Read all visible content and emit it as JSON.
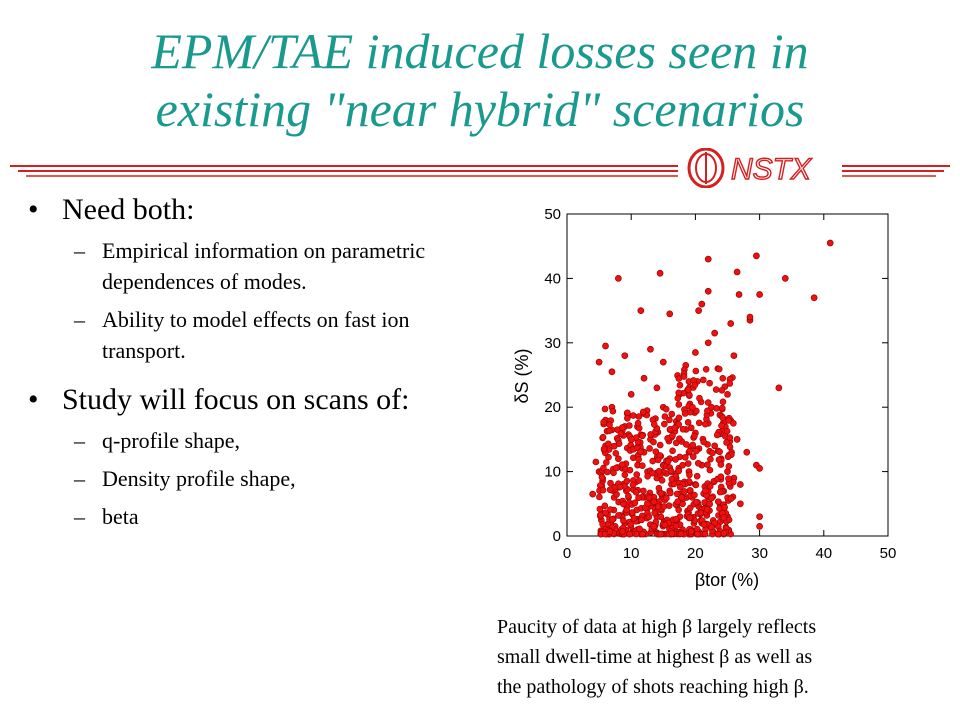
{
  "slide": {
    "title_line1": "EPM/TAE induced losses seen in",
    "title_line2": "existing \"near hybrid\" scenarios",
    "logo_text": "NSTX",
    "bullet_glyph": "•",
    "dash_glyph": "–",
    "bullets": [
      {
        "text": "Need both:",
        "sub": [
          "Empirical information on parametric dependences of modes.",
          "Ability to model effects on fast ion transport."
        ]
      },
      {
        "text": "Study will focus on scans of:",
        "sub": [
          "q-profile shape,",
          "Density profile shape,",
          "beta"
        ]
      }
    ],
    "caption_lines": [
      "Paucity of data at high β largely reflects",
      "small dwell-time at highest β as well as",
      "the pathology of shots reaching high β."
    ]
  },
  "colors": {
    "title": "#1a9a8e",
    "logo_red": "#d42020",
    "points": "#ee1111",
    "point_edge": "#990000"
  },
  "chart_data": {
    "type": "scatter",
    "xlabel": "βtor (%)",
    "ylabel": "δS (%)",
    "xlim": [
      0,
      50
    ],
    "ylim": [
      0,
      50
    ],
    "xticks": [
      0,
      10,
      20,
      30,
      40,
      50
    ],
    "yticks": [
      0,
      10,
      20,
      30,
      40,
      50
    ],
    "grid": false,
    "series": [
      {
        "points": [
          [
            41,
            45.5
          ],
          [
            29.5,
            43.5
          ],
          [
            22,
            43
          ],
          [
            14.5,
            40.8
          ],
          [
            8,
            40
          ],
          [
            30,
            37.5
          ],
          [
            34,
            40
          ],
          [
            38.5,
            37
          ],
          [
            26.5,
            41
          ],
          [
            22,
            38
          ],
          [
            26.8,
            37.5
          ],
          [
            21,
            36
          ],
          [
            20.5,
            35
          ],
          [
            11.5,
            35
          ],
          [
            28.5,
            33.5
          ],
          [
            28.5,
            34
          ],
          [
            25.5,
            33
          ],
          [
            16,
            34.5
          ],
          [
            33,
            23
          ],
          [
            26,
            28
          ],
          [
            23,
            31.5
          ],
          [
            22,
            30
          ],
          [
            20,
            28.5
          ],
          [
            18.5,
            26.5
          ],
          [
            15,
            27
          ],
          [
            13,
            29
          ],
          [
            9,
            28
          ],
          [
            6,
            29.5
          ],
          [
            5,
            27
          ],
          [
            7,
            25.5
          ],
          [
            12,
            24.5
          ],
          [
            19,
            24
          ],
          [
            23.5,
            26
          ],
          [
            17.5,
            22
          ],
          [
            14,
            23
          ],
          [
            10,
            22
          ],
          [
            25,
            22
          ],
          [
            7,
            20
          ],
          [
            6,
            18
          ],
          [
            9,
            17
          ],
          [
            12,
            19
          ],
          [
            15,
            20
          ],
          [
            22.5,
            20
          ],
          [
            26.5,
            15
          ],
          [
            24,
            12
          ],
          [
            28,
            13
          ],
          [
            29.5,
            11
          ],
          [
            30,
            10.5
          ],
          [
            30,
            3
          ],
          [
            30,
            1.5
          ],
          [
            27,
            5
          ],
          [
            25,
            3
          ],
          [
            5.5,
            3.5
          ],
          [
            4,
            6.5
          ],
          [
            5,
            10
          ],
          [
            4.5,
            11.5
          ],
          [
            9,
            2
          ],
          [
            7.5,
            1.5
          ],
          [
            21,
            2
          ],
          [
            18,
            1
          ],
          [
            14,
            0.5
          ],
          [
            11,
            1
          ],
          [
            16,
            12
          ],
          [
            13,
            15
          ],
          [
            11,
            11
          ],
          [
            8,
            8
          ],
          [
            10,
            5
          ],
          [
            12,
            6
          ],
          [
            14,
            3
          ],
          [
            16,
            7
          ],
          [
            18,
            5
          ],
          [
            20,
            8
          ],
          [
            22,
            6
          ],
          [
            24,
            7
          ],
          [
            26,
            9
          ],
          [
            19,
            13
          ],
          [
            21,
            11
          ],
          [
            23,
            14
          ],
          [
            17,
            17
          ],
          [
            20,
            16
          ],
          [
            22,
            17.5
          ],
          [
            6,
            14
          ],
          [
            8,
            12
          ],
          [
            10,
            15
          ],
          [
            12,
            13
          ],
          [
            14,
            9
          ],
          [
            15,
            11
          ],
          [
            17,
            9
          ],
          [
            19,
            10
          ],
          [
            25,
            10
          ],
          [
            27,
            8
          ]
        ]
      }
    ]
  }
}
